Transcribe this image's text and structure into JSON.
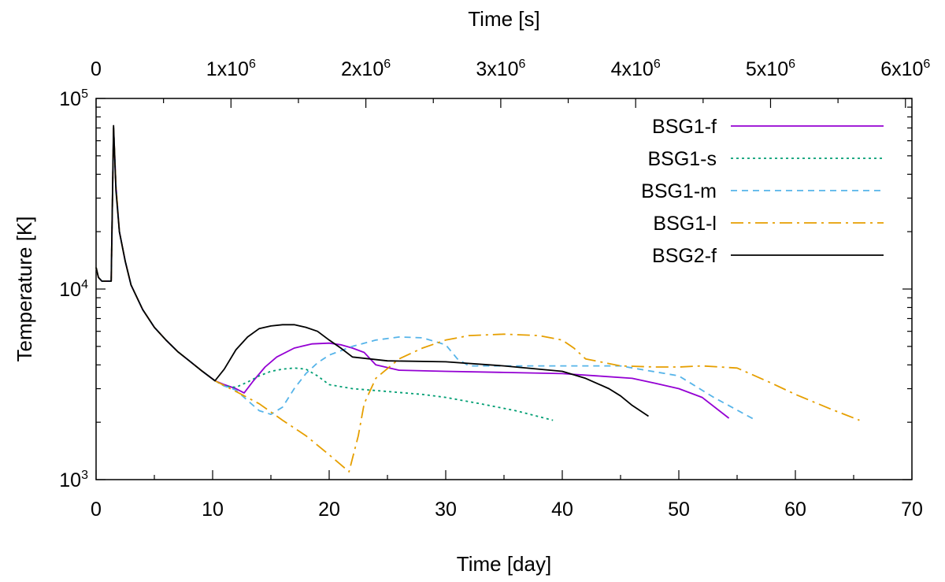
{
  "chart_data": {
    "type": "line",
    "xlabel": "Time [day]",
    "ylabel": "Temperature [K]",
    "x2label": "Time [s]",
    "xlim": [
      0,
      70
    ],
    "ylim": [
      1000,
      100000
    ],
    "yscale": "log",
    "x2lim": [
      0,
      6048000
    ],
    "x_ticks": [
      {
        "value": 0,
        "label": "0"
      },
      {
        "value": 10,
        "label": "10"
      },
      {
        "value": 20,
        "label": "20"
      },
      {
        "value": 30,
        "label": "30"
      },
      {
        "value": 40,
        "label": "40"
      },
      {
        "value": 50,
        "label": "50"
      },
      {
        "value": 60,
        "label": "60"
      },
      {
        "value": 70,
        "label": "70"
      }
    ],
    "x2_ticks": [
      {
        "value": 0,
        "base": "0",
        "exp": ""
      },
      {
        "value": 1000000,
        "base": "1x10",
        "exp": "6"
      },
      {
        "value": 2000000,
        "base": "2x10",
        "exp": "6"
      },
      {
        "value": 3000000,
        "base": "3x10",
        "exp": "6"
      },
      {
        "value": 4000000,
        "base": "4x10",
        "exp": "6"
      },
      {
        "value": 5000000,
        "base": "5x10",
        "exp": "6"
      },
      {
        "value": 6000000,
        "base": "6x10",
        "exp": "6"
      }
    ],
    "y_ticks": [
      {
        "value": 1000,
        "base": "10",
        "exp": "3"
      },
      {
        "value": 10000,
        "base": "10",
        "exp": "4"
      },
      {
        "value": 100000,
        "base": "10",
        "exp": "5"
      }
    ],
    "legend_position": "top-right",
    "series": [
      {
        "name": "BSG1-f",
        "color": "#9400d3",
        "dash": "",
        "x": [
          0,
          0.2,
          0.5,
          1.0,
          1.3,
          1.5,
          1.7,
          2.0,
          2.5,
          3,
          4,
          5,
          6,
          7,
          8,
          9,
          10.2,
          11,
          12,
          12.7,
          13.5,
          14.5,
          15.5,
          17,
          18.5,
          20,
          21,
          22,
          23,
          24,
          26,
          30,
          35,
          40,
          43,
          46,
          48,
          50,
          52,
          54.3
        ],
        "y": [
          13000,
          11500,
          11000,
          11000,
          11000,
          70000,
          35000,
          20000,
          14000,
          10500,
          7800,
          6300,
          5400,
          4700,
          4200,
          3750,
          3300,
          3150,
          3000,
          2850,
          3300,
          3900,
          4400,
          4900,
          5150,
          5200,
          5100,
          4900,
          4650,
          4000,
          3750,
          3700,
          3650,
          3600,
          3500,
          3400,
          3200,
          3000,
          2700,
          2100
        ]
      },
      {
        "name": "BSG1-s",
        "color": "#009e73",
        "dash": "3,4",
        "x": [
          0,
          0.2,
          0.5,
          1.0,
          1.3,
          1.5,
          1.7,
          2.0,
          2.5,
          3,
          4,
          5,
          6,
          7,
          8,
          9,
          10.2,
          11,
          12,
          13,
          14,
          15,
          16,
          17,
          18,
          19,
          20,
          22,
          25,
          28,
          30,
          33,
          36,
          39.2
        ],
        "y": [
          13000,
          11500,
          11000,
          11000,
          11000,
          70000,
          35000,
          20000,
          14000,
          10500,
          7800,
          6300,
          5400,
          4700,
          4200,
          3750,
          3300,
          3100,
          3050,
          3250,
          3500,
          3700,
          3800,
          3850,
          3800,
          3500,
          3150,
          3000,
          2900,
          2800,
          2700,
          2500,
          2300,
          2050
        ]
      },
      {
        "name": "BSG1-m",
        "color": "#56b4e9",
        "dash": "8,6",
        "x": [
          0,
          0.2,
          0.5,
          1.0,
          1.3,
          1.5,
          1.7,
          2.0,
          2.5,
          3,
          4,
          5,
          6,
          7,
          8,
          9,
          10.2,
          11,
          12,
          13,
          14,
          15,
          16,
          17,
          18,
          19,
          20,
          22,
          24,
          26,
          28,
          30,
          31,
          32,
          35,
          40,
          45,
          50,
          53,
          56.6
        ],
        "y": [
          13000,
          11500,
          11000,
          11000,
          11000,
          70000,
          35000,
          20000,
          14000,
          10500,
          7800,
          6300,
          5400,
          4700,
          4200,
          3750,
          3300,
          3100,
          2950,
          2600,
          2300,
          2200,
          2400,
          3000,
          3600,
          4100,
          4500,
          5000,
          5400,
          5600,
          5550,
          5100,
          4300,
          3950,
          3950,
          3950,
          3950,
          3500,
          2700,
          2050
        ]
      },
      {
        "name": "BSG1-l",
        "color": "#e69f00",
        "dash": "16,6,3,6",
        "x": [
          0,
          0.2,
          0.5,
          1.0,
          1.3,
          1.5,
          1.7,
          2.0,
          2.5,
          3,
          4,
          5,
          6,
          7,
          8,
          9,
          10.2,
          12,
          14,
          16,
          18,
          20,
          21.7,
          22.5,
          23,
          24,
          26,
          28,
          30,
          32,
          35,
          38,
          40,
          41,
          42,
          45,
          48,
          50,
          52,
          55,
          58,
          60,
          63,
          65.5
        ],
        "y": [
          13000,
          11500,
          11000,
          11000,
          11000,
          70000,
          35000,
          20000,
          14000,
          10500,
          7800,
          6300,
          5400,
          4700,
          4200,
          3750,
          3300,
          2900,
          2500,
          2050,
          1700,
          1350,
          1100,
          1700,
          2500,
          3400,
          4300,
          4900,
          5400,
          5700,
          5800,
          5700,
          5400,
          4900,
          4300,
          3950,
          3900,
          3900,
          3950,
          3850,
          3200,
          2800,
          2350,
          2050
        ]
      },
      {
        "name": "BSG2-f",
        "color": "#000000",
        "dash": "",
        "x": [
          0,
          0.2,
          0.5,
          1.0,
          1.3,
          1.5,
          1.7,
          2.0,
          2.5,
          3,
          4,
          5,
          6,
          7,
          8,
          9,
          10.2,
          11,
          12,
          13,
          14,
          15,
          16,
          17,
          18,
          19,
          20,
          21,
          22,
          25,
          30,
          35,
          40,
          42,
          44,
          45,
          46,
          47.4
        ],
        "y": [
          13000,
          11500,
          11000,
          11000,
          11000,
          72000,
          33000,
          20000,
          14000,
          10500,
          7800,
          6300,
          5400,
          4700,
          4200,
          3750,
          3300,
          3800,
          4800,
          5600,
          6200,
          6400,
          6500,
          6500,
          6300,
          6000,
          5400,
          4900,
          4400,
          4200,
          4150,
          3950,
          3700,
          3400,
          3000,
          2750,
          2450,
          2150
        ]
      }
    ]
  }
}
